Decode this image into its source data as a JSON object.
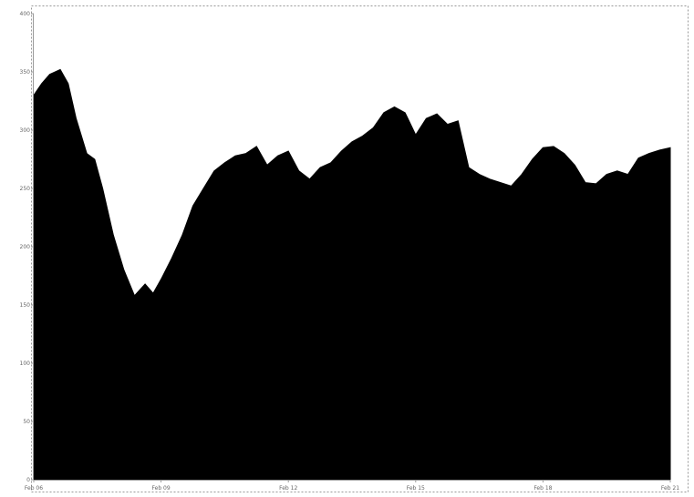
{
  "chart_data": {
    "type": "area",
    "title": "",
    "xlabel": "",
    "ylabel": "",
    "ylim": [
      0,
      400
    ],
    "y_ticks": [
      0,
      50,
      100,
      150,
      200,
      250,
      300,
      350,
      400
    ],
    "y_tick_labels": [
      "0",
      "50",
      "100",
      "150",
      "200",
      "250",
      "300",
      "350",
      "400"
    ],
    "x_ticks": [
      0,
      48,
      96,
      144,
      192,
      240
    ],
    "x_tick_labels": [
      "Feb 06",
      "Feb 09",
      "Feb 12",
      "Feb 15",
      "Feb 18",
      "Feb 21"
    ],
    "x_range": [
      0,
      240
    ],
    "grid": false,
    "legend": "none",
    "fill_color": "#000000",
    "series": [
      {
        "x": [
          0,
          3,
          6,
          10,
          13,
          16,
          20,
          23,
          26,
          30,
          34,
          38,
          42,
          45,
          48,
          52,
          56,
          60,
          64,
          68,
          72,
          76,
          80,
          84,
          88,
          92,
          96,
          100,
          104,
          108,
          112,
          116,
          120,
          124,
          128,
          132,
          136,
          140,
          144,
          148,
          152,
          156,
          160,
          164,
          168,
          172,
          176,
          180,
          184,
          188,
          192,
          196,
          200,
          204,
          208,
          212,
          216,
          220,
          224,
          228,
          232,
          236,
          240
        ],
        "y": [
          330,
          340,
          348,
          352,
          340,
          310,
          280,
          275,
          250,
          210,
          180,
          158,
          168,
          160,
          172,
          190,
          210,
          235,
          250,
          265,
          272,
          278,
          280,
          286,
          270,
          278,
          282,
          265,
          258,
          268,
          272,
          282,
          290,
          295,
          302,
          315,
          320,
          315,
          296,
          310,
          314,
          305,
          308,
          268,
          262,
          258,
          255,
          252,
          262,
          275,
          285,
          286,
          280,
          270,
          255,
          254,
          262,
          265,
          262,
          276,
          280,
          283,
          285
        ]
      }
    ]
  }
}
